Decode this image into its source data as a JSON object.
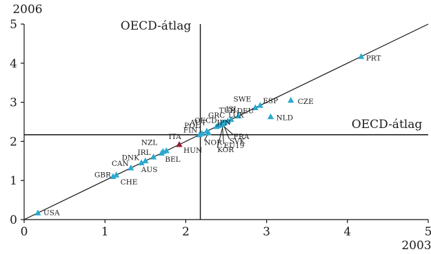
{
  "chart_data": {
    "type": "scatter",
    "xlabel": "2003",
    "ylabel": "2006",
    "xlim": [
      0,
      5
    ],
    "ylim": [
      0,
      5
    ],
    "x_ticks": [
      "0",
      "1",
      "2",
      "3",
      "4",
      "5"
    ],
    "y_ticks": [
      "0",
      "1",
      "2",
      "3",
      "4",
      "5"
    ],
    "grid": false,
    "diagonal_line": true,
    "reference_lines": {
      "vertical": {
        "x": 2.18,
        "label": "OECD-átlag"
      },
      "horizontal": {
        "y": 2.17,
        "label": "OECD-átlag"
      }
    },
    "colors": {
      "marker": "#2aa9cf",
      "highlight": "#9b1b30",
      "lines": "#111111"
    },
    "points": [
      {
        "label": "USA",
        "x": 0.17,
        "y": 0.17
      },
      {
        "label": "GBR",
        "x": 1.1,
        "y": 1.1
      },
      {
        "label": "CHE",
        "x": 1.14,
        "y": 1.14
      },
      {
        "label": "CAN",
        "x": 1.32,
        "y": 1.32
      },
      {
        "label": "DNK",
        "x": 1.45,
        "y": 1.45
      },
      {
        "label": "AUS",
        "x": 1.5,
        "y": 1.5
      },
      {
        "label": "IRL",
        "x": 1.6,
        "y": 1.6
      },
      {
        "label": "NZL",
        "x": 1.7,
        "y": 1.7
      },
      {
        "label": "BEL",
        "x": 1.76,
        "y": 1.76
      },
      {
        "label": "ITA",
        "x": 1.72,
        "y": 1.74
      },
      {
        "label": "HUN",
        "x": 1.92,
        "y": 1.92,
        "highlight": true
      },
      {
        "label": "FIN",
        "x": 2.17,
        "y": 2.17
      },
      {
        "label": "POL",
        "x": 2.2,
        "y": 2.2
      },
      {
        "label": "AUT",
        "x": 2.26,
        "y": 2.26
      },
      {
        "label": "NOR",
        "x": 2.28,
        "y": 2.22
      },
      {
        "label": "GRC",
        "x": 2.38,
        "y": 2.38
      },
      {
        "label": "JPN",
        "x": 2.4,
        "y": 2.4
      },
      {
        "label": "OECD",
        "x": 2.42,
        "y": 2.42
      },
      {
        "label": "TUR",
        "x": 2.48,
        "y": 2.48
      },
      {
        "label": "ISL",
        "x": 2.52,
        "y": 2.52
      },
      {
        "label": "LUX",
        "x": 2.56,
        "y": 2.56
      },
      {
        "label": "FRA",
        "x": 2.44,
        "y": 2.44
      },
      {
        "label": "SVK",
        "x": 2.46,
        "y": 2.46
      },
      {
        "label": "EU19",
        "x": 2.45,
        "y": 2.45
      },
      {
        "label": "KOR",
        "x": 2.47,
        "y": 2.47
      },
      {
        "label": "DEU",
        "x": 2.65,
        "y": 2.65
      },
      {
        "label": "SWE",
        "x": 2.86,
        "y": 2.86
      },
      {
        "label": "ESP",
        "x": 2.92,
        "y": 2.92
      },
      {
        "label": "NLD",
        "x": 3.05,
        "y": 2.63
      },
      {
        "label": "CZE",
        "x": 3.3,
        "y": 3.05
      },
      {
        "label": "PRT",
        "x": 4.17,
        "y": 4.17
      }
    ]
  }
}
